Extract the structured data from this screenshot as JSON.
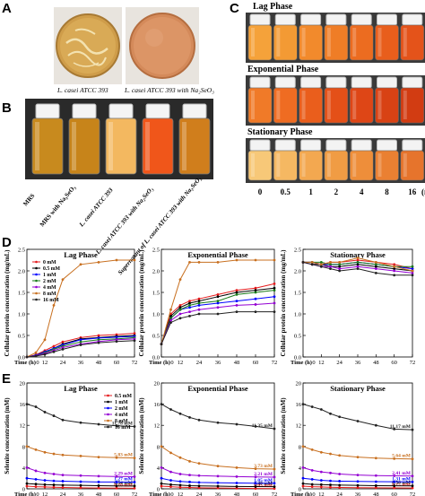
{
  "panels": {
    "A": "A",
    "B": "B",
    "C": "C",
    "D": "D",
    "E": "E"
  },
  "panel_a": {
    "caption_left": "L. casei ATCC 393",
    "caption_right": "L. casei ATCC 393 with Na₂SeO₃"
  },
  "panel_b": {
    "labels": [
      "MRS",
      "MRS with Na₂SeO₃",
      "L. casei ATCC 393",
      "L. casei ATCC 393 with Na₂SeO₃",
      "Supernatant of L. casei ATCC 393 with Na₂SeO₃"
    ],
    "colors": [
      "#c88a1e",
      "#c7841a",
      "#f3b860",
      "#f0561a",
      "#d07e1c"
    ]
  },
  "panel_c": {
    "phases": [
      "Lag Phase",
      "Exponential Phase",
      "Stationary Phase"
    ],
    "concentrations": [
      "0",
      "0.5",
      "1",
      "2",
      "4",
      "8",
      "16"
    ],
    "unit": "(mM)",
    "rows": [
      [
        "#f5a23a",
        "#f39a34",
        "#f28a2c",
        "#ef7d26",
        "#ec6c20",
        "#e85e1c",
        "#e4531a"
      ],
      [
        "#f07a28",
        "#ef6c22",
        "#ea5e1c",
        "#e45018",
        "#de4616",
        "#d84214",
        "#d23c12"
      ],
      [
        "#f7c878",
        "#f5b862",
        "#f3a850",
        "#f09c44",
        "#ee8e3a",
        "#ea8032",
        "#e6742c"
      ]
    ]
  },
  "chart_data": [
    {
      "type": "line",
      "title": "Lag Phase",
      "ylabel": "Cellular protein concentration (mg/mL)",
      "xlabel": "Time (h)",
      "x": [
        0,
        6,
        12,
        18,
        24,
        36,
        48,
        60,
        72
      ],
      "ylim": [
        0,
        2.5
      ],
      "yticks": [
        0,
        0.5,
        1.0,
        1.5,
        2.0,
        2.5
      ],
      "legend": "top-left",
      "series": [
        {
          "name": "0 mM",
          "color": "#e41a1c",
          "values": [
            0.0,
            0.05,
            0.15,
            0.25,
            0.35,
            0.45,
            0.5,
            0.52,
            0.55
          ]
        },
        {
          "name": "0.5 mM",
          "color": "#000000",
          "values": [
            0.0,
            0.04,
            0.12,
            0.2,
            0.3,
            0.42,
            0.45,
            0.48,
            0.5
          ]
        },
        {
          "name": "1 mM",
          "color": "#0000ff",
          "values": [
            0.0,
            0.04,
            0.12,
            0.2,
            0.28,
            0.4,
            0.44,
            0.46,
            0.48
          ]
        },
        {
          "name": "2 mM",
          "color": "#1a7a1a",
          "values": [
            0.0,
            0.03,
            0.1,
            0.18,
            0.25,
            0.35,
            0.4,
            0.42,
            0.45
          ]
        },
        {
          "name": "4 mM",
          "color": "#9400d3",
          "values": [
            0.0,
            0.03,
            0.08,
            0.15,
            0.22,
            0.3,
            0.36,
            0.4,
            0.42
          ]
        },
        {
          "name": "8 mM",
          "color": "#c87020",
          "values": [
            0.0,
            0.1,
            0.4,
            1.2,
            1.8,
            2.15,
            2.2,
            2.25,
            2.25
          ]
        },
        {
          "name": "16 mM",
          "color": "#222222",
          "values": [
            0.0,
            0.02,
            0.06,
            0.12,
            0.18,
            0.28,
            0.33,
            0.36,
            0.38
          ]
        }
      ]
    },
    {
      "type": "line",
      "title": "Exponential Phase",
      "ylabel": "Cellular protein concentration (mg/mL)",
      "xlabel": "Time (h)",
      "x": [
        0,
        6,
        12,
        18,
        24,
        36,
        48,
        60,
        72
      ],
      "ylim": [
        0,
        2.5
      ],
      "yticks": [
        0,
        0.5,
        1.0,
        1.5,
        2.0,
        2.5
      ],
      "series": [
        {
          "name": "0 mM",
          "color": "#e41a1c",
          "values": [
            0.3,
            1.0,
            1.2,
            1.3,
            1.35,
            1.45,
            1.55,
            1.6,
            1.7
          ]
        },
        {
          "name": "0.5 mM",
          "color": "#000000",
          "values": [
            0.3,
            0.95,
            1.15,
            1.25,
            1.3,
            1.4,
            1.5,
            1.55,
            1.6
          ]
        },
        {
          "name": "1 mM",
          "color": "#0000ff",
          "values": [
            0.3,
            0.9,
            1.1,
            1.15,
            1.2,
            1.25,
            1.3,
            1.35,
            1.4
          ]
        },
        {
          "name": "2 mM",
          "color": "#1a7a1a",
          "values": [
            0.3,
            0.9,
            1.1,
            1.2,
            1.25,
            1.3,
            1.45,
            1.5,
            1.55
          ]
        },
        {
          "name": "4 mM",
          "color": "#9400d3",
          "values": [
            0.3,
            0.85,
            1.0,
            1.05,
            1.1,
            1.15,
            1.2,
            1.22,
            1.25
          ]
        },
        {
          "name": "8 mM",
          "color": "#c87020",
          "values": [
            0.3,
            1.1,
            1.8,
            2.2,
            2.2,
            2.2,
            2.25,
            2.25,
            2.25
          ]
        },
        {
          "name": "16 mM",
          "color": "#222222",
          "values": [
            0.3,
            0.8,
            0.9,
            0.95,
            1.0,
            1.0,
            1.05,
            1.05,
            1.05
          ]
        }
      ]
    },
    {
      "type": "line",
      "title": "Stationary Phase",
      "ylabel": "Cellular protein concentration (mg/mL)",
      "xlabel": "Time (h)",
      "x": [
        0,
        6,
        12,
        18,
        24,
        36,
        48,
        60,
        72
      ],
      "ylim": [
        0,
        2.5
      ],
      "yticks": [
        0,
        0.5,
        1.0,
        1.5,
        2.0,
        2.5
      ],
      "series": [
        {
          "name": "0 mM",
          "color": "#e41a1c",
          "values": [
            2.2,
            2.2,
            2.15,
            2.2,
            2.2,
            2.25,
            2.2,
            2.15,
            2.05
          ]
        },
        {
          "name": "0.5 mM",
          "color": "#000000",
          "values": [
            2.2,
            2.15,
            2.15,
            2.1,
            2.1,
            2.15,
            2.1,
            2.05,
            2.0
          ]
        },
        {
          "name": "1 mM",
          "color": "#0000ff",
          "values": [
            2.2,
            2.2,
            2.15,
            2.15,
            2.15,
            2.2,
            2.15,
            2.1,
            2.05
          ]
        },
        {
          "name": "2 mM",
          "color": "#1a7a1a",
          "values": [
            2.2,
            2.2,
            2.2,
            2.15,
            2.15,
            2.2,
            2.15,
            2.1,
            2.1
          ]
        },
        {
          "name": "4 mM",
          "color": "#9400d3",
          "values": [
            2.2,
            2.15,
            2.1,
            2.1,
            2.05,
            2.1,
            2.05,
            2.0,
            1.95
          ]
        },
        {
          "name": "8 mM",
          "color": "#c87020",
          "values": [
            2.2,
            2.2,
            2.15,
            2.2,
            2.2,
            2.3,
            2.2,
            2.1,
            2.0
          ]
        },
        {
          "name": "16 mM",
          "color": "#222222",
          "values": [
            2.2,
            2.15,
            2.1,
            2.05,
            2.0,
            2.05,
            1.95,
            1.9,
            1.9
          ]
        }
      ]
    },
    {
      "type": "line",
      "title": "Lag Phase",
      "ylabel": "Selenite concentration (mM)",
      "xlabel": "Time (h)",
      "x": [
        0,
        6,
        12,
        18,
        24,
        36,
        48,
        60,
        72
      ],
      "ylim": [
        0,
        20
      ],
      "yticks": [
        0,
        4,
        8,
        12,
        16,
        20
      ],
      "legend": "top-right",
      "series": [
        {
          "name": "0.5 mM",
          "color": "#e41a1c",
          "values": [
            0.5,
            0.4,
            0.35,
            0.3,
            0.25,
            0.2,
            0.15,
            0.12,
            0.1
          ],
          "end_label": "0.10 mM"
        },
        {
          "name": "1 mM",
          "color": "#000000",
          "values": [
            1.0,
            0.9,
            0.8,
            0.75,
            0.7,
            0.65,
            0.6,
            0.55,
            0.54
          ],
          "end_label": "0.54 mM"
        },
        {
          "name": "2 mM",
          "color": "#0000ff",
          "values": [
            2.0,
            1.8,
            1.6,
            1.5,
            1.45,
            1.35,
            1.3,
            1.28,
            1.27
          ],
          "end_label": "1.27 mM"
        },
        {
          "name": "4 mM",
          "color": "#9400d3",
          "values": [
            4.0,
            3.4,
            3.0,
            2.8,
            2.6,
            2.5,
            2.4,
            2.32,
            2.29
          ],
          "end_label": "2.29 mM"
        },
        {
          "name": "8 mM",
          "color": "#c87020",
          "values": [
            8.0,
            7.4,
            6.9,
            6.6,
            6.4,
            6.2,
            6.0,
            5.9,
            5.83
          ],
          "end_label": "5.83 mM"
        },
        {
          "name": "16 mM",
          "color": "#222222",
          "values": [
            16.0,
            15.5,
            14.5,
            13.8,
            13.0,
            12.5,
            12.2,
            11.9,
            11.78
          ],
          "end_label": "11.78 mM"
        }
      ]
    },
    {
      "type": "line",
      "title": "Exponential Phase",
      "ylabel": "Selenite concentration (mM)",
      "xlabel": "Time (h)",
      "x": [
        0,
        6,
        12,
        18,
        24,
        36,
        48,
        60,
        72
      ],
      "ylim": [
        0,
        20
      ],
      "yticks": [
        0,
        4,
        8,
        12,
        16,
        20
      ],
      "series": [
        {
          "name": "0.5 mM",
          "color": "#e41a1c",
          "values": [
            0.5,
            0.4,
            0.3,
            0.25,
            0.2,
            0.15,
            0.1,
            0.06,
            0.05
          ],
          "end_label": "0.05 mM"
        },
        {
          "name": "1 mM",
          "color": "#000000",
          "values": [
            1.0,
            0.8,
            0.7,
            0.6,
            0.55,
            0.5,
            0.45,
            0.42,
            0.4
          ],
          "end_label": "0.40 mM"
        },
        {
          "name": "2 mM",
          "color": "#0000ff",
          "values": [
            2.0,
            1.6,
            1.4,
            1.3,
            1.2,
            1.15,
            1.1,
            1.05,
            1.05
          ],
          "end_label": "1.05 mM"
        },
        {
          "name": "4 mM",
          "color": "#9400d3",
          "values": [
            4.0,
            3.2,
            2.8,
            2.6,
            2.5,
            2.4,
            2.3,
            2.25,
            2.21
          ],
          "end_label": "2.21 mM"
        },
        {
          "name": "8 mM",
          "color": "#c87020",
          "values": [
            8.0,
            6.8,
            5.9,
            5.2,
            4.8,
            4.3,
            4.0,
            3.8,
            3.73
          ],
          "end_label": "3.73 mM"
        },
        {
          "name": "16 mM",
          "color": "#222222",
          "values": [
            16.0,
            15.0,
            14.2,
            13.5,
            13.0,
            12.5,
            12.2,
            11.8,
            11.35
          ],
          "end_label": "11.35 mM"
        }
      ]
    },
    {
      "type": "line",
      "title": "Stationary Phase",
      "ylabel": "Selenite concentration (mM)",
      "xlabel": "Time (h)",
      "x": [
        0,
        6,
        12,
        18,
        24,
        36,
        48,
        60,
        72
      ],
      "ylim": [
        0,
        20
      ],
      "yticks": [
        0,
        4,
        8,
        12,
        16,
        20
      ],
      "series": [
        {
          "name": "0.5 mM",
          "color": "#e41a1c",
          "values": [
            0.5,
            0.4,
            0.35,
            0.3,
            0.25,
            0.22,
            0.2,
            0.18,
            0.15
          ],
          "end_label": "0.15 mM"
        },
        {
          "name": "1 mM",
          "color": "#000000",
          "values": [
            1.0,
            0.85,
            0.8,
            0.75,
            0.7,
            0.65,
            0.6,
            0.58,
            0.56
          ],
          "end_label": "0.56 mM"
        },
        {
          "name": "2 mM",
          "color": "#0000ff",
          "values": [
            2.0,
            1.8,
            1.6,
            1.5,
            1.45,
            1.4,
            1.35,
            1.33,
            1.31
          ],
          "end_label": "1.31 mM"
        },
        {
          "name": "4 mM",
          "color": "#9400d3",
          "values": [
            4.0,
            3.5,
            3.2,
            3.0,
            2.8,
            2.6,
            2.5,
            2.45,
            2.41
          ],
          "end_label": "2.41 mM"
        },
        {
          "name": "8 mM",
          "color": "#c87020",
          "values": [
            8.0,
            7.4,
            6.9,
            6.6,
            6.3,
            6.0,
            5.8,
            5.7,
            5.64
          ],
          "end_label": "5.64 mM"
        },
        {
          "name": "16 mM",
          "color": "#222222",
          "values": [
            16.0,
            15.5,
            15.0,
            14.2,
            13.6,
            12.8,
            12.0,
            11.3,
            11.17
          ],
          "end_label": "11.17 mM"
        }
      ]
    }
  ]
}
